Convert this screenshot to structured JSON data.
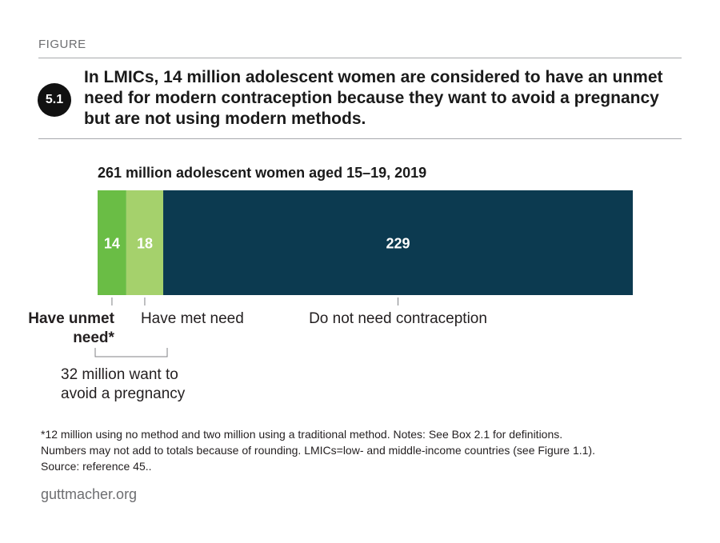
{
  "figure": {
    "eyebrow": "FIGURE",
    "number": "5.1",
    "title": "In LMICs, 14 million adolescent women are considered to have an unmet need for modern contraception because they want to avoid a pregnancy but are not using modern methods."
  },
  "chart_data": {
    "type": "bar",
    "orientation": "horizontal-stacked",
    "title": "261 million adolescent women aged 15–19, 2019",
    "total": 261,
    "segments": [
      {
        "label_line1": "Have unmet",
        "label_line2": "need*",
        "value": 14,
        "color": "#6abd45"
      },
      {
        "label_line1": "Have met need",
        "label_line2": "",
        "value": 18,
        "color": "#a5d16c"
      },
      {
        "label_line1": "Do not need contraception",
        "label_line2": "",
        "value": 229,
        "color": "#0c3a50"
      }
    ],
    "bracket": {
      "line1": "32 million want to",
      "line2": "avoid a pregnancy",
      "spans_segments": [
        0,
        1
      ]
    }
  },
  "notes": {
    "line1": "*12 million using no method and two million using a traditional method. Notes: See Box 2.1 for definitions.",
    "line2": "Numbers may not add to totals because of rounding. LMICs=low- and middle-income countries (see Figure 1.1).",
    "line3": "Source: reference 45.."
  },
  "brand": "guttmacher.org"
}
